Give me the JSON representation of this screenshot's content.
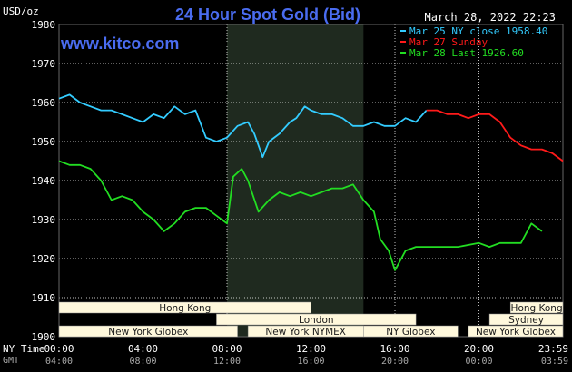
{
  "header": {
    "title": "24 Hour Spot Gold (Bid)",
    "date": "March 28, 2022 22:23",
    "site": "www.kitco.com",
    "currency_label": "USD/oz"
  },
  "legend": [
    {
      "label": "Mar 25 NY close 1958.40",
      "color": "#33ccff"
    },
    {
      "label": "Mar 27 Sunday",
      "color": "#ff1a1a"
    },
    {
      "label": "Mar 28 Last 1926.60",
      "color": "#22dd22"
    }
  ],
  "axis_footer": {
    "ny_time_label": "NY Time",
    "gmt_label": "GMT",
    "ny_ticks": [
      "00:00",
      "04:00",
      "08:00",
      "12:00",
      "16:00",
      "20:00",
      "23:59"
    ],
    "gmt_ticks": [
      "04:00",
      "08:00",
      "12:00",
      "16:00",
      "20:00",
      "00:00",
      "03:59"
    ]
  },
  "sessions": [
    {
      "label": "Hong Kong",
      "row": 0,
      "start": 0.0,
      "end": 12.0
    },
    {
      "label": "London",
      "row": 1,
      "start": 7.5,
      "end": 17.0
    },
    {
      "label": "New York Globex",
      "row": 2,
      "start": 0.0,
      "end": 8.5
    },
    {
      "label": "New York NYMEX",
      "row": 2,
      "start": 9.0,
      "end": 14.5
    },
    {
      "label": "NY Globex",
      "row": 2,
      "start": 14.5,
      "end": 19.0
    },
    {
      "label": "Hong Kong",
      "row": 0,
      "start": 21.5,
      "end": 24.0
    },
    {
      "label": "Sydney",
      "row": 1,
      "start": 20.5,
      "end": 24.0
    },
    {
      "label": "New York Globex",
      "row": 2,
      "start": 19.5,
      "end": 24.0
    }
  ],
  "colors": {
    "background": "#000000",
    "grid": "#ffffff",
    "highlight": "#1f2a1f",
    "session_fill": "#fff8dc",
    "session_text": "#1a1a1a",
    "axis_text": "#ffffff",
    "footer_text": "#aaaaaa"
  },
  "chart_data": {
    "type": "line",
    "xlabel": "",
    "ylabel": "USD/oz",
    "xlim": [
      0,
      24
    ],
    "ylim": [
      1900,
      1980
    ],
    "yticks": [
      1900,
      1910,
      1920,
      1930,
      1940,
      1950,
      1960,
      1970,
      1980
    ],
    "highlight_band": [
      8.0,
      14.5
    ],
    "grid": true,
    "series": [
      {
        "name": "Mar 25 NY close 1958.40",
        "color": "#33ccff",
        "x": [
          0,
          0.5,
          1,
          1.5,
          2,
          2.5,
          3,
          3.5,
          4,
          4.5,
          5,
          5.5,
          6,
          6.5,
          7,
          7.5,
          8,
          8.5,
          9,
          9.3,
          9.7,
          10,
          10.5,
          11,
          11.3,
          11.7,
          12,
          12.5,
          13,
          13.5,
          14,
          14.5,
          15,
          15.5,
          16,
          16.5,
          17,
          17.5
        ],
        "values": [
          1961,
          1962,
          1960,
          1959,
          1958,
          1958,
          1957,
          1956,
          1955,
          1957,
          1956,
          1959,
          1957,
          1958,
          1951,
          1950,
          1951,
          1954,
          1955,
          1952,
          1946,
          1950,
          1952,
          1955,
          1956,
          1959,
          1958,
          1957,
          1957,
          1956,
          1954,
          1954,
          1955,
          1954,
          1954,
          1956,
          1955,
          1958
        ]
      },
      {
        "name": "Mar 27 Sunday",
        "color": "#ff1a1a",
        "x": [
          17.5,
          18,
          18.5,
          19,
          19.5,
          20,
          20.5,
          21,
          21.5,
          22,
          22.5,
          23,
          23.5,
          24
        ],
        "values": [
          1958,
          1958,
          1957,
          1957,
          1956,
          1957,
          1957,
          1955,
          1951,
          1949,
          1948,
          1948,
          1947,
          1945
        ]
      },
      {
        "name": "Mar 28 Last 1926.60",
        "color": "#22dd22",
        "x": [
          0,
          0.5,
          1,
          1.5,
          2,
          2.5,
          3,
          3.5,
          4,
          4.5,
          5,
          5.5,
          6,
          6.5,
          7,
          7.5,
          8,
          8.3,
          8.7,
          9,
          9.5,
          10,
          10.5,
          11,
          11.5,
          12,
          12.5,
          13,
          13.5,
          14,
          14.5,
          15,
          15.3,
          15.7,
          16,
          16.5,
          17,
          18,
          19,
          20,
          20.5,
          21,
          21.5,
          22,
          22.5,
          23
        ],
        "values": [
          1945,
          1944,
          1944,
          1943,
          1940,
          1935,
          1936,
          1935,
          1932,
          1930,
          1927,
          1929,
          1932,
          1933,
          1933,
          1931,
          1929,
          1941,
          1943,
          1940,
          1932,
          1935,
          1937,
          1936,
          1937,
          1936,
          1937,
          1938,
          1938,
          1939,
          1935,
          1932,
          1925,
          1922,
          1917,
          1922,
          1923,
          1923,
          1923,
          1924,
          1923,
          1924,
          1924,
          1924,
          1929,
          1927
        ]
      }
    ]
  }
}
